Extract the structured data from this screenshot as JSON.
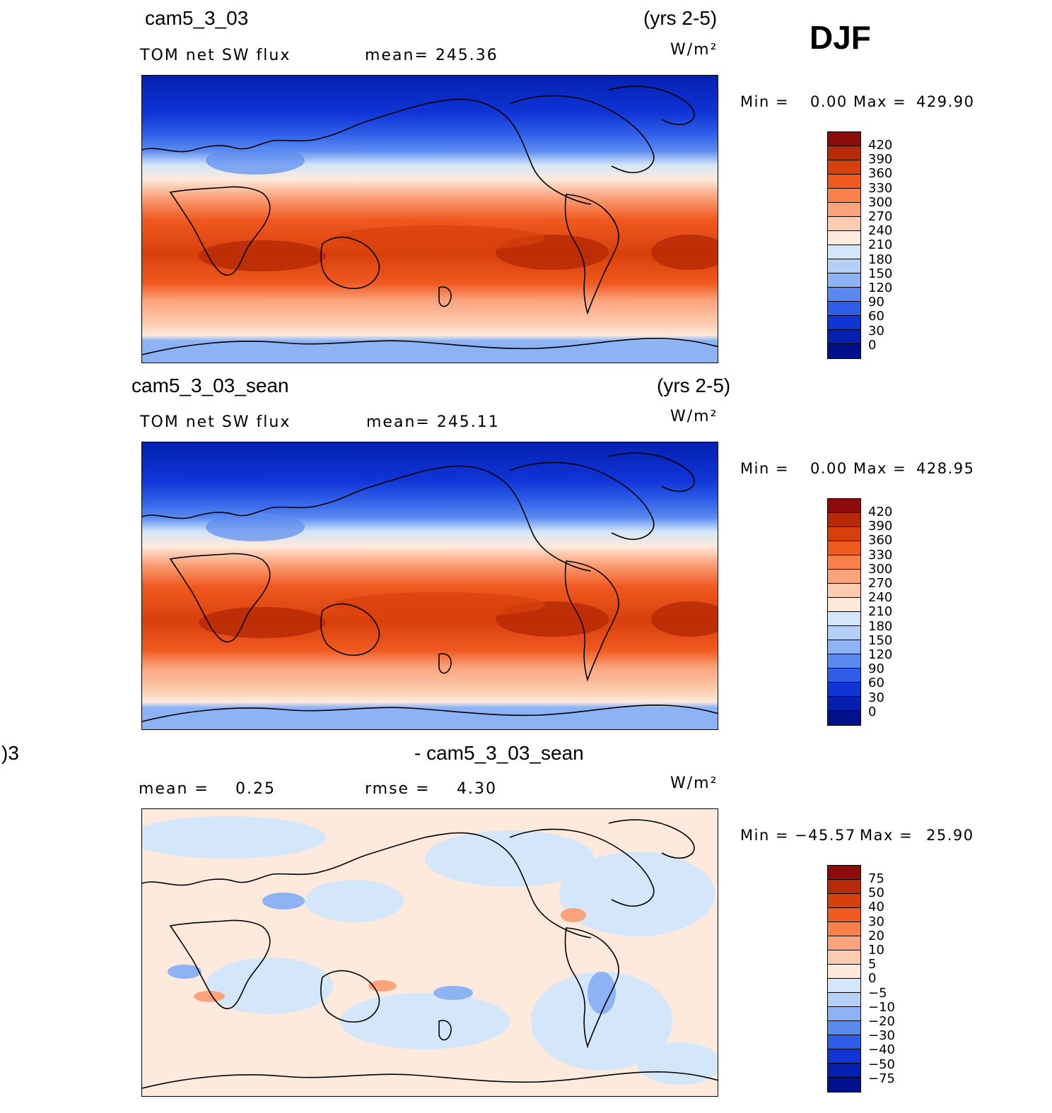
{
  "season": "DJF",
  "units": "W/m²",
  "panels": [
    {
      "case": "cam5_3_03",
      "years": "(yrs 2-5)",
      "variable": "TOM net SW flux",
      "stat": "mean=  245.36",
      "min_label": "Min  =",
      "min_value": "0.00",
      "max_label": "Max  =",
      "max_value": "429.90",
      "colorbar_levels": [
        "420",
        "390",
        "360",
        "330",
        "300",
        "270",
        "240",
        "210",
        "180",
        "150",
        "120",
        "90",
        "60",
        "30",
        "0"
      ],
      "colorbar_colors": [
        "#8c0c0c",
        "#b82a06",
        "#d8400b",
        "#f0591f",
        "#fa7f48",
        "#fba37c",
        "#fdccb0",
        "#fdeadc",
        "#d3e6fa",
        "#b5d0f6",
        "#8db3f5",
        "#5a8af0",
        "#2e5ee8",
        "#1034d6",
        "#0420b0",
        "#000f8a"
      ]
    },
    {
      "case": "cam5_3_03_sean",
      "years": "(yrs 2-5)",
      "variable": "TOM net SW flux",
      "stat": "mean=  245.11",
      "min_label": "Min  =",
      "min_value": "0.00",
      "max_label": "Max  =",
      "max_value": "428.95",
      "colorbar_levels": [
        "420",
        "390",
        "360",
        "330",
        "300",
        "270",
        "240",
        "210",
        "180",
        "150",
        "120",
        "90",
        "60",
        "30",
        "0"
      ],
      "colorbar_colors": [
        "#8c0c0c",
        "#b82a06",
        "#d8400b",
        "#f0591f",
        "#fa7f48",
        "#fba37c",
        "#fdccb0",
        "#fdeadc",
        "#d3e6fa",
        "#b5d0f6",
        "#8db3f5",
        "#5a8af0",
        "#2e5ee8",
        "#1034d6",
        "#0420b0",
        "#000f8a"
      ]
    },
    {
      "case_left": ")3",
      "case": "- cam5_3_03_sean",
      "mean_label": "mean  =",
      "mean_value": "0.25",
      "rmse_label": "rmse  =",
      "rmse_value": "4.30",
      "min_label": "Min  =",
      "min_value": "−45.57",
      "max_label": "Max  =",
      "max_value": "25.90",
      "colorbar_levels": [
        "75",
        "50",
        "40",
        "30",
        "20",
        "10",
        "5",
        "0",
        "−5",
        "−10",
        "−20",
        "−30",
        "−40",
        "−50",
        "−75"
      ],
      "colorbar_colors": [
        "#8c0c0c",
        "#b82a06",
        "#d8400b",
        "#f0591f",
        "#fa7f48",
        "#fba37c",
        "#fdccb0",
        "#fdeadc",
        "#d3e6fa",
        "#b5d0f6",
        "#8db3f5",
        "#5a8af0",
        "#2e5ee8",
        "#1034d6",
        "#0420b0",
        "#000f8a"
      ]
    }
  ]
}
